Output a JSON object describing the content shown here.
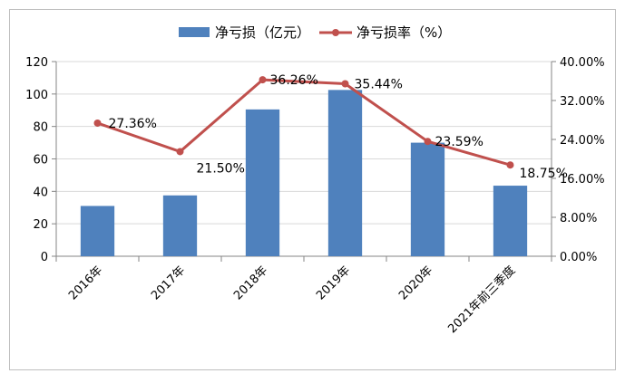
{
  "chart_data": {
    "type": "bar+line",
    "title": "",
    "categories": [
      "2016年",
      "2017年",
      "2018年",
      "2019年",
      "2020年",
      "2021年前三季度"
    ],
    "series": [
      {
        "name": "净亏损（亿元）",
        "type": "bar",
        "axis": "left",
        "values": [
          31,
          37.5,
          90.5,
          102.5,
          70,
          43.5
        ],
        "color": "#4f81bd"
      },
      {
        "name": "净亏损率（%）",
        "type": "line",
        "axis": "right",
        "values": [
          27.36,
          21.5,
          36.26,
          35.44,
          23.59,
          18.75
        ],
        "labels": [
          "27.36%",
          "21.50%",
          "36.26%",
          "35.44%",
          "23.59%",
          "18.75%"
        ],
        "color": "#c0504d"
      }
    ],
    "y_left": {
      "ylim": [
        0,
        120
      ],
      "ticks": [
        "0",
        "20",
        "40",
        "60",
        "80",
        "100",
        "120"
      ]
    },
    "y_right": {
      "ylim": [
        0,
        40
      ],
      "ticks": [
        "0.00%",
        "8.00%",
        "16.00%",
        "24.00%",
        "32.00%",
        "40.00%"
      ]
    },
    "grid": true,
    "legend": "top-center"
  }
}
